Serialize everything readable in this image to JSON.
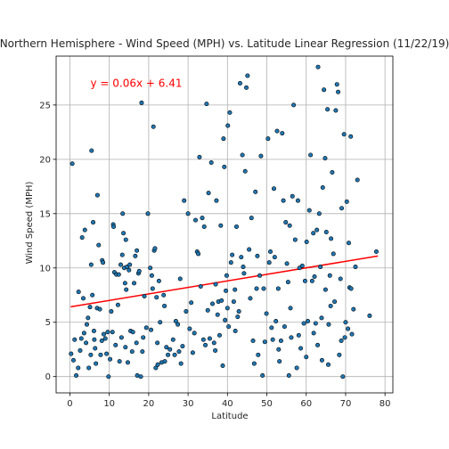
{
  "chart_data": {
    "type": "scatter",
    "title": "Northern Hemisphere - Wind Speed (MPH) vs. Latitude Linear Regression (11/22/19)",
    "xlabel": "Latitude",
    "ylabel": "Wind Speed (MPH)",
    "xlim": [
      -3.5,
      82
    ],
    "ylim": [
      -1.5,
      29.5
    ],
    "xticks": [
      0,
      10,
      20,
      30,
      40,
      50,
      60,
      70,
      80
    ],
    "yticks": [
      0,
      5,
      10,
      15,
      20,
      25
    ],
    "grid": true,
    "marker_color": "#1f77b4",
    "marker_edge": "#000000",
    "line_color": "#ff0000",
    "annotation": {
      "text": "y = 0.06x + 6.41",
      "color": "#ff0000"
    },
    "regression": {
      "slope": 0.06,
      "intercept": 6.41,
      "x_range": [
        0.2,
        78.2
      ]
    },
    "series": [
      {
        "points": [
          [
            0.3,
            2.1
          ],
          [
            0.6,
            19.6
          ],
          [
            0.9,
            1.5
          ],
          [
            1.2,
            3.4
          ],
          [
            1.6,
            0.1
          ],
          [
            2.1,
            0.8
          ],
          [
            2.2,
            7.8
          ],
          [
            2.6,
            2.4
          ],
          [
            2.9,
            3.5
          ],
          [
            3.1,
            12.8
          ],
          [
            3.4,
            7.2
          ],
          [
            3.6,
            4.0
          ],
          [
            3.8,
            13.5
          ],
          [
            4.1,
            3.1
          ],
          [
            4.3,
            4.8
          ],
          [
            4.6,
            5.4
          ],
          [
            4.8,
            0.8
          ],
          [
            5.1,
            6.4
          ],
          [
            5.3,
            2.0
          ],
          [
            5.4,
            10.3
          ],
          [
            5.5,
            20.8
          ],
          [
            5.7,
            7.5
          ],
          [
            5.9,
            14.2
          ],
          [
            6.1,
            4.2
          ],
          [
            6.2,
            3.4
          ],
          [
            6.4,
            2.6
          ],
          [
            6.6,
            1.2
          ],
          [
            6.9,
            6.3
          ],
          [
            7.0,
            16.7
          ],
          [
            7.3,
            12.1
          ],
          [
            7.6,
            6.2
          ],
          [
            7.8,
            2.0
          ],
          [
            8.1,
            3.3
          ],
          [
            8.2,
            10.7
          ],
          [
            8.4,
            10.5
          ],
          [
            8.6,
            3.9
          ],
          [
            9.0,
            3.5
          ],
          [
            9.3,
            2.1
          ],
          [
            9.6,
            4.1
          ],
          [
            9.8,
            0.0
          ],
          [
            10.2,
            1.6
          ],
          [
            10.5,
            6.0
          ],
          [
            10.8,
            4.1
          ],
          [
            11.0,
            14.0
          ],
          [
            11.1,
            13.8
          ],
          [
            11.3,
            9.6
          ],
          [
            11.6,
            2.9
          ],
          [
            11.8,
            9.4
          ],
          [
            12.2,
            6.6
          ],
          [
            12.4,
            9.4
          ],
          [
            12.6,
            1.4
          ],
          [
            12.9,
            10.3
          ],
          [
            13.1,
            3.6
          ],
          [
            13.3,
            11.2
          ],
          [
            13.4,
            15.0
          ],
          [
            13.6,
            13.2
          ],
          [
            13.8,
            10.0
          ],
          [
            14.0,
            8.6
          ],
          [
            14.1,
            2.7
          ],
          [
            14.2,
            12.6
          ],
          [
            14.3,
            8.0
          ],
          [
            14.5,
            10.1
          ],
          [
            14.7,
            1.3
          ],
          [
            15.0,
            9.8
          ],
          [
            15.2,
            10.3
          ],
          [
            15.4,
            4.2
          ],
          [
            15.8,
            2.3
          ],
          [
            16.0,
            4.1
          ],
          [
            16.3,
            8.6
          ],
          [
            16.6,
            11.1
          ],
          [
            16.9,
            3.1
          ],
          [
            17.0,
            11.6
          ],
          [
            17.1,
            0.1
          ],
          [
            17.4,
            9.5
          ],
          [
            17.6,
            9.7
          ],
          [
            18.0,
            0.0
          ],
          [
            18.2,
            25.2
          ],
          [
            18.4,
            2.3
          ],
          [
            18.6,
            3.6
          ],
          [
            18.9,
            7.4
          ],
          [
            19.4,
            4.5
          ],
          [
            19.8,
            15.0
          ],
          [
            20.4,
            10.0
          ],
          [
            20.6,
            4.3
          ],
          [
            20.8,
            9.3
          ],
          [
            21.0,
            8.1
          ],
          [
            21.2,
            23.0
          ],
          [
            21.4,
            11.6
          ],
          [
            21.6,
            11.8
          ],
          [
            21.8,
            0.8
          ],
          [
            22.0,
            7.3
          ],
          [
            22.2,
            3.1
          ],
          [
            22.3,
            1.1
          ],
          [
            22.6,
            8.8
          ],
          [
            22.9,
            5.0
          ],
          [
            23.3,
            1.3
          ],
          [
            23.8,
            7.5
          ],
          [
            24.1,
            1.4
          ],
          [
            24.5,
            2.7
          ],
          [
            24.9,
            2.0
          ],
          [
            25.4,
            2.5
          ],
          [
            26.2,
            3.4
          ],
          [
            26.6,
            2.0
          ],
          [
            26.9,
            5.1
          ],
          [
            27.4,
            4.8
          ],
          [
            27.7,
            2.3
          ],
          [
            28.2,
            1.2
          ],
          [
            28.6,
            2.8
          ],
          [
            29.0,
            16.2
          ],
          [
            29.5,
            6.0
          ],
          [
            30.0,
            15.0
          ],
          [
            30.4,
            4.4
          ],
          [
            30.8,
            6.8
          ],
          [
            31.2,
            2.2
          ],
          [
            31.6,
            4.0
          ],
          [
            31.9,
            14.4
          ],
          [
            32.3,
            11.5
          ],
          [
            32.6,
            11.3
          ],
          [
            32.9,
            20.2
          ],
          [
            33.2,
            8.3
          ],
          [
            33.6,
            14.6
          ],
          [
            33.9,
            3.4
          ],
          [
            34.1,
            13.8
          ],
          [
            34.4,
            2.9
          ],
          [
            34.7,
            25.1
          ],
          [
            35.0,
            6.1
          ],
          [
            35.2,
            16.9
          ],
          [
            35.5,
            3.5
          ],
          [
            35.9,
            19.7
          ],
          [
            36.2,
            6.7
          ],
          [
            36.6,
            3.1
          ],
          [
            36.9,
            2.4
          ],
          [
            37.2,
            16.2
          ],
          [
            37.5,
            5.7
          ],
          [
            37.7,
            6.9
          ],
          [
            38.0,
            3.8
          ],
          [
            38.3,
            13.9
          ],
          [
            38.5,
            7.0
          ],
          [
            38.8,
            1.0
          ],
          [
            39.0,
            21.9
          ],
          [
            39.2,
            19.3
          ],
          [
            39.4,
            5.2
          ],
          [
            39.6,
            7.9
          ],
          [
            39.8,
            9.3
          ],
          [
            40.0,
            6.3
          ],
          [
            40.1,
            23.1
          ],
          [
            40.3,
            4.6
          ],
          [
            40.6,
            24.3
          ],
          [
            40.9,
            10.5
          ],
          [
            41.2,
            11.2
          ],
          [
            41.6,
            6.9
          ],
          [
            41.9,
            8.0
          ],
          [
            42.3,
            13.8
          ],
          [
            42.6,
            5.5
          ],
          [
            42.9,
            6.0
          ],
          [
            43.2,
            27.0
          ],
          [
            43.5,
            11.0
          ],
          [
            43.8,
            20.4
          ],
          [
            44.0,
            10.1
          ],
          [
            44.2,
            9.5
          ],
          [
            44.5,
            18.9
          ],
          [
            44.8,
            26.6
          ],
          [
            45.1,
            27.7
          ],
          [
            45.5,
            11.7
          ],
          [
            45.8,
            7.2
          ],
          [
            46.1,
            14.6
          ],
          [
            46.5,
            3.3
          ],
          [
            46.8,
            1.2
          ],
          [
            47.1,
            17.0
          ],
          [
            47.4,
            8.1
          ],
          [
            47.8,
            2.0
          ],
          [
            48.2,
            9.3
          ],
          [
            48.5,
            20.3
          ],
          [
            48.9,
            0.1
          ],
          [
            49.2,
            8.1
          ],
          [
            49.5,
            3.2
          ],
          [
            49.9,
            5.8
          ],
          [
            50.3,
            21.9
          ],
          [
            50.6,
            10.5
          ],
          [
            50.9,
            11.5
          ],
          [
            51.2,
            4.5
          ],
          [
            51.5,
            3.4
          ],
          [
            51.8,
            17.3
          ],
          [
            52.0,
            11.0
          ],
          [
            52.3,
            5.1
          ],
          [
            52.6,
            22.6
          ],
          [
            52.9,
            8.1
          ],
          [
            53.2,
            1.4
          ],
          [
            53.6,
            3.3
          ],
          [
            53.9,
            22.4
          ],
          [
            54.2,
            16.2
          ],
          [
            54.5,
            4.6
          ],
          [
            54.8,
            14.2
          ],
          [
            55.1,
            10.4
          ],
          [
            55.4,
            8.7
          ],
          [
            55.8,
            13.9
          ],
          [
            56.2,
            3.6
          ],
          [
            56.5,
            16.6
          ],
          [
            56.8,
            25.0
          ],
          [
            57.2,
            12.6
          ],
          [
            57.6,
            0.8
          ],
          [
            57.9,
            16.2
          ],
          [
            58.3,
            10.0
          ],
          [
            58.6,
            2.6
          ],
          [
            59.0,
            10.2
          ],
          [
            59.4,
            4.9
          ],
          [
            59.7,
            8.8
          ],
          [
            60.1,
            12.4
          ],
          [
            60.4,
            5.1
          ],
          [
            60.8,
            15.3
          ],
          [
            61.1,
            20.4
          ],
          [
            61.5,
            8.8
          ],
          [
            61.8,
            13.2
          ],
          [
            62.1,
            9.2
          ],
          [
            62.4,
            4.9
          ],
          [
            62.7,
            13.5
          ],
          [
            63.0,
            28.5
          ],
          [
            63.3,
            15.0
          ],
          [
            63.6,
            10.1
          ],
          [
            63.9,
            5.4
          ],
          [
            64.2,
            17.4
          ],
          [
            64.5,
            26.4
          ],
          [
            64.8,
            20.1
          ],
          [
            65.1,
            13.3
          ],
          [
            65.4,
            24.6
          ],
          [
            65.7,
            4.8
          ],
          [
            66.0,
            9.3
          ],
          [
            66.3,
            12.7
          ],
          [
            66.6,
            18.8
          ],
          [
            66.9,
            11.3
          ],
          [
            67.2,
            6.9
          ],
          [
            67.5,
            24.5
          ],
          [
            67.8,
            26.9
          ],
          [
            68.1,
            26.2
          ],
          [
            68.4,
            2.0
          ],
          [
            68.7,
            9.0
          ],
          [
            69.0,
            15.5
          ],
          [
            69.3,
            0.0
          ],
          [
            69.6,
            22.3
          ],
          [
            70.0,
            5.0
          ],
          [
            70.3,
            16.1
          ],
          [
            70.6,
            4.4
          ],
          [
            71.0,
            8.2
          ],
          [
            71.3,
            22.1
          ],
          [
            71.6,
            3.9
          ],
          [
            72.0,
            6.2
          ],
          [
            72.5,
            10.1
          ],
          [
            73.0,
            18.1
          ],
          [
            76.1,
            5.6
          ],
          [
            77.8,
            11.5
          ],
          [
            64.9,
            8.0
          ],
          [
            66.2,
            6.5
          ],
          [
            69.8,
            3.6
          ],
          [
            70.8,
            12.3
          ],
          [
            56.0,
            6.3
          ],
          [
            47.6,
            11.1
          ],
          [
            42.0,
            4.2
          ],
          [
            37.0,
            8.5
          ],
          [
            28.0,
            9.0
          ],
          [
            24.0,
            6.5
          ],
          [
            60.0,
            1.8
          ],
          [
            62.9,
            2.9
          ],
          [
            58.1,
            3.8
          ],
          [
            65.6,
            1.1
          ],
          [
            68.9,
            3.3
          ],
          [
            71.4,
            8.1
          ],
          [
            53.0,
            2.5
          ],
          [
            61.9,
            4.0
          ],
          [
            64.0,
            1.5
          ],
          [
            55.6,
            0.1
          ]
        ]
      }
    ]
  }
}
